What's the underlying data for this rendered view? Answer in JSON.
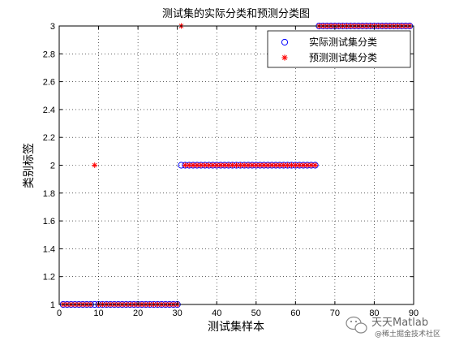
{
  "chart_data": {
    "type": "scatter",
    "title": "测试集的实际分类和预测分类图",
    "xlabel": "测试集样本",
    "ylabel": "类别标签",
    "xlim": [
      0,
      90
    ],
    "ylim": [
      1,
      3
    ],
    "xticks": [
      0,
      10,
      20,
      30,
      40,
      50,
      60,
      70,
      80,
      90
    ],
    "yticks": [
      1,
      1.2,
      1.4,
      1.6,
      1.8,
      2,
      2.2,
      2.4,
      2.6,
      2.8,
      3
    ],
    "xtick_labels": [
      "0",
      "10",
      "20",
      "30",
      "40",
      "50",
      "60",
      "70",
      "80",
      "90"
    ],
    "ytick_labels": [
      "1",
      "1.2",
      "1.4",
      "1.6",
      "1.8",
      "2",
      "2.2",
      "2.4",
      "2.6",
      "2.8",
      "3"
    ],
    "grid": true,
    "legend_position": "top-right",
    "series": [
      {
        "name": "实际测试集分类",
        "marker": "circle",
        "color": "#0000ff",
        "segments": [
          {
            "x_from": 1,
            "x_to": 30,
            "y": 1
          },
          {
            "x_from": 31,
            "x_to": 65,
            "y": 2
          },
          {
            "x_from": 66,
            "x_to": 89,
            "y": 3
          }
        ]
      },
      {
        "name": "预测测试集分类",
        "marker": "star",
        "color": "#ff0000",
        "segments": [
          {
            "x_from": 1,
            "x_to": 30,
            "y": 1,
            "except": [
              9
            ]
          },
          {
            "x_from": 31,
            "x_to": 65,
            "y": 2,
            "except": [
              31
            ]
          },
          {
            "x_from": 66,
            "x_to": 89,
            "y": 3
          }
        ],
        "points": [
          {
            "x": 9,
            "y": 2
          },
          {
            "x": 31,
            "y": 3
          }
        ]
      }
    ]
  },
  "watermark": {
    "line1": "天天Matlab",
    "line2": "@稀土掘金技术社区"
  }
}
